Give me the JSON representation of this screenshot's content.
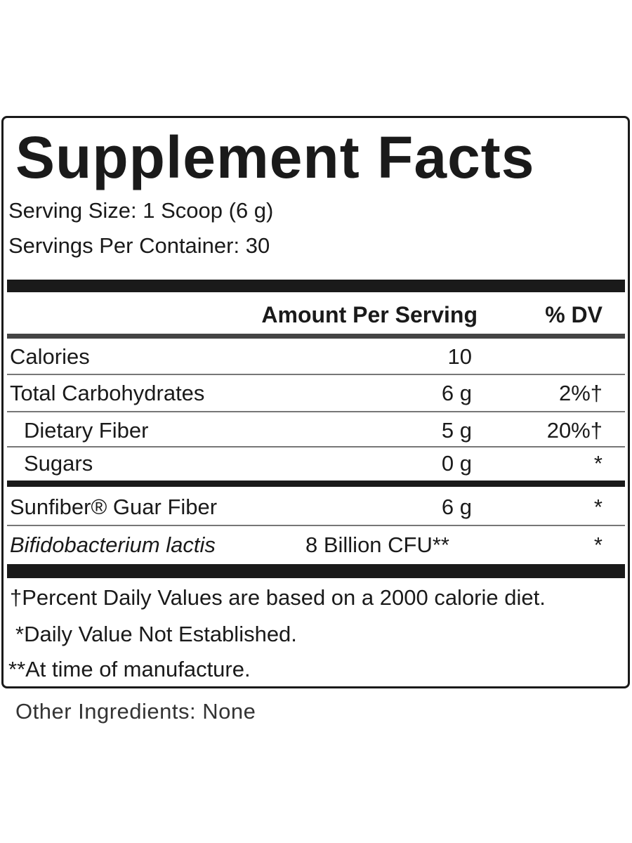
{
  "label": {
    "title": "Supplement Facts",
    "serving_size": "Serving Size: 1 Scoop (6 g)",
    "servings_per_container": "Servings Per Container: 30",
    "header": {
      "amount": "Amount Per Serving",
      "dv": "% DV"
    },
    "rows": [
      {
        "name": "Calories",
        "amount": "10",
        "dv": null
      },
      {
        "name": "Total Carbohydrates",
        "amount": "6 g",
        "dv": "2%†"
      },
      {
        "name": "Dietary Fiber",
        "amount": "5 g",
        "dv": "20%†"
      },
      {
        "name": "Sugars",
        "amount": "0 g",
        "dv": "*"
      },
      {
        "name": "Sunfiber® Guar Fiber",
        "amount": "6 g",
        "dv": "*"
      },
      {
        "name": "Bifidobacterium lactis",
        "amount": "8 Billion CFU**",
        "dv": "*"
      }
    ],
    "footnotes": [
      "†Percent Daily Values are based on a 2000 calorie diet.",
      "*Daily Value Not Established.",
      "**At time of manufacture."
    ]
  },
  "other_ingredients": "Other Ingredients: None"
}
